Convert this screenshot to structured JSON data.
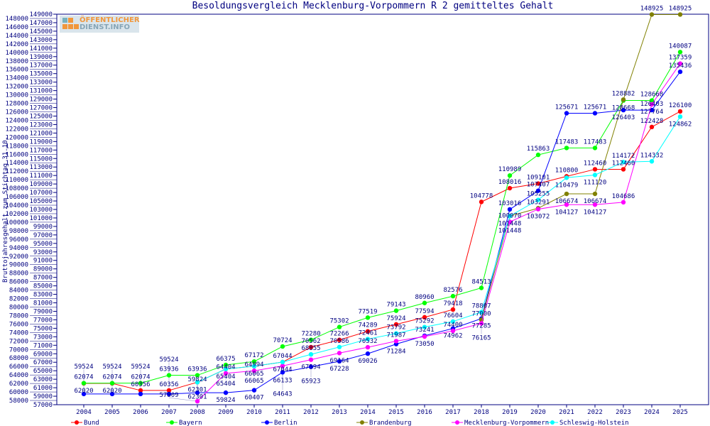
{
  "chart_data": {
    "type": "line",
    "title": "Besoldungsvergleich Mecklenburg-Vorpommern R 2 gemitteltes Gehalt",
    "xlabel": "",
    "ylabel": "Bruttojahresgehalt zum Stichtag 31.10.",
    "ylim": [
      57000,
      149000
    ],
    "ytick_step": 1000,
    "grid": false,
    "legend_position": "bottom",
    "categories": [
      "2004",
      "2005",
      "2006",
      "2007",
      "2008",
      "2009",
      "2010",
      "2011",
      "2012",
      "2013",
      "2014",
      "2015",
      "2016",
      "2017",
      "2018",
      "2019",
      "2020",
      "2021",
      "2022",
      "2023",
      "2024",
      "2025"
    ],
    "series": [
      {
        "name": "Bund",
        "color": "#ff0000",
        "values": [
          62020,
          62020,
          60356,
          60356,
          62301,
          65404,
          66065,
          67044,
          70562,
          72266,
          74289,
          75924,
          77594,
          79418,
          104778,
          108016,
          109101,
          110800,
          112460,
          112460,
          122428,
          126100
        ]
      },
      {
        "name": "Bayern",
        "color": "#00ff00",
        "values": [
          62074,
          62074,
          62074,
          63936,
          63936,
          66375,
          67172,
          70724,
          72280,
          75302,
          77519,
          79143,
          80960,
          82576,
          84513,
          110989,
          115863,
          117483,
          117483,
          128668,
          128668,
          140087
        ]
      },
      {
        "name": "Berlin",
        "color": "#0000ff",
        "values": [
          59524,
          59524,
          59524,
          59524,
          59824,
          59824,
          60407,
          64643,
          65923,
          67228,
          69026,
          71284,
          73241,
          74962,
          77285,
          103016,
          107407,
          125671,
          125671,
          126403,
          126403,
          135436
        ]
      },
      {
        "name": "Brandenburg",
        "color": "#808000",
        "values": [
          null,
          null,
          null,
          null,
          null,
          null,
          null,
          null,
          null,
          null,
          null,
          null,
          null,
          null,
          77000,
          101448,
          103291,
          106674,
          106674,
          128882,
          148925,
          148925
        ]
      },
      {
        "name": "Mecklenburg-Vorpommern",
        "color": "#ff00ff",
        "values": [
          null,
          null,
          null,
          null,
          57809,
          64404,
          64994,
          66133,
          67594,
          69164,
          70532,
          71987,
          73050,
          74400,
          76165,
          100070,
          103072,
          104127,
          104127,
          104686,
          127764,
          137359
        ]
      },
      {
        "name": "Schleswig-Holstein",
        "color": "#00ffff",
        "values": [
          null,
          null,
          null,
          null,
          62301,
          65404,
          66065,
          67044,
          68855,
          70586,
          72461,
          73792,
          75292,
          76604,
          78807,
          101448,
          105255,
          110479,
          111120,
          114172,
          114332,
          124862
        ]
      }
    ]
  },
  "logo": {
    "line1": "ÖFFENTLICHER",
    "line2": "DIENST.INFO"
  }
}
